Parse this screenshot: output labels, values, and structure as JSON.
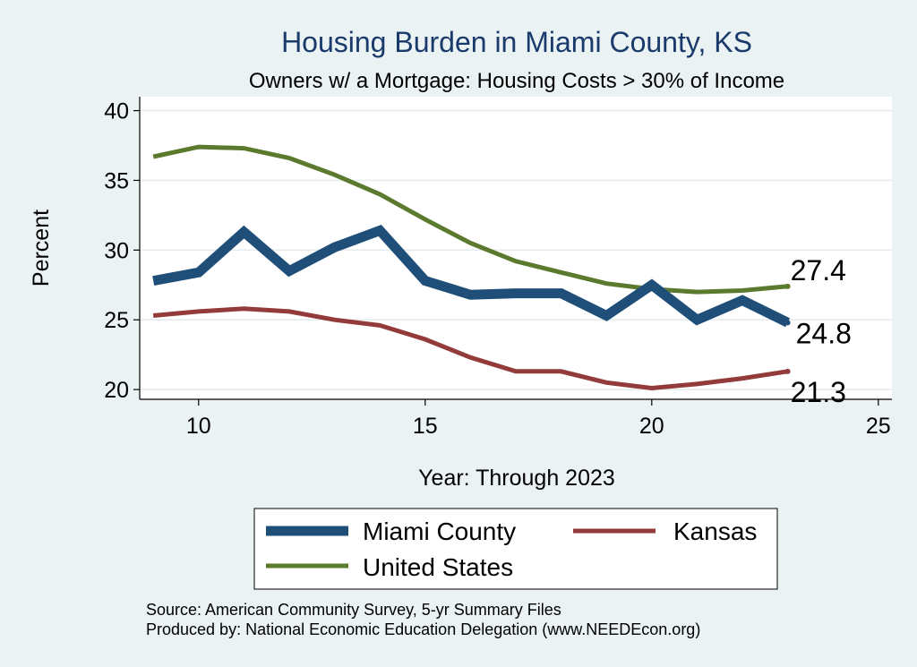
{
  "chart_data": {
    "type": "line",
    "title": "Housing Burden in Miami County, KS",
    "subtitle": "Owners w/ a Mortgage: Housing Costs > 30% of Income",
    "xlabel": "Year: Through 2023",
    "ylabel": "Percent",
    "xlim": [
      8.7,
      25.3
    ],
    "ylim": [
      19.3,
      41
    ],
    "x_ticks": [
      10,
      15,
      20,
      25
    ],
    "y_ticks": [
      20,
      25,
      30,
      35,
      40
    ],
    "grid": true,
    "legend_position": "bottom",
    "x": [
      9,
      10,
      11,
      12,
      13,
      14,
      15,
      16,
      17,
      18,
      19,
      20,
      21,
      22,
      23
    ],
    "series": [
      {
        "name": "Miami County",
        "color": "#1f4e79",
        "width": 11,
        "values": [
          27.8,
          28.4,
          31.3,
          28.5,
          30.2,
          31.4,
          27.8,
          26.8,
          26.9,
          26.9,
          25.3,
          27.5,
          25.0,
          26.4,
          24.8
        ],
        "end_label": "24.8"
      },
      {
        "name": "Kansas",
        "color": "#933a3a",
        "width": 5,
        "values": [
          25.3,
          25.6,
          25.8,
          25.6,
          25.0,
          24.6,
          23.6,
          22.3,
          21.3,
          21.3,
          20.5,
          20.1,
          20.4,
          20.8,
          21.3
        ],
        "end_label": "21.3"
      },
      {
        "name": "United States",
        "color": "#5c7a2e",
        "width": 5,
        "values": [
          36.7,
          37.4,
          37.3,
          36.6,
          35.4,
          34.0,
          32.2,
          30.5,
          29.2,
          28.4,
          27.6,
          27.2,
          27.0,
          27.1,
          27.4
        ],
        "end_label": "27.4"
      }
    ],
    "source_lines": [
      "Source: American Community Survey, 5-yr Summary Files",
      "Produced by: National Economic Education Delegation (www.NEEDEcon.org)"
    ]
  }
}
